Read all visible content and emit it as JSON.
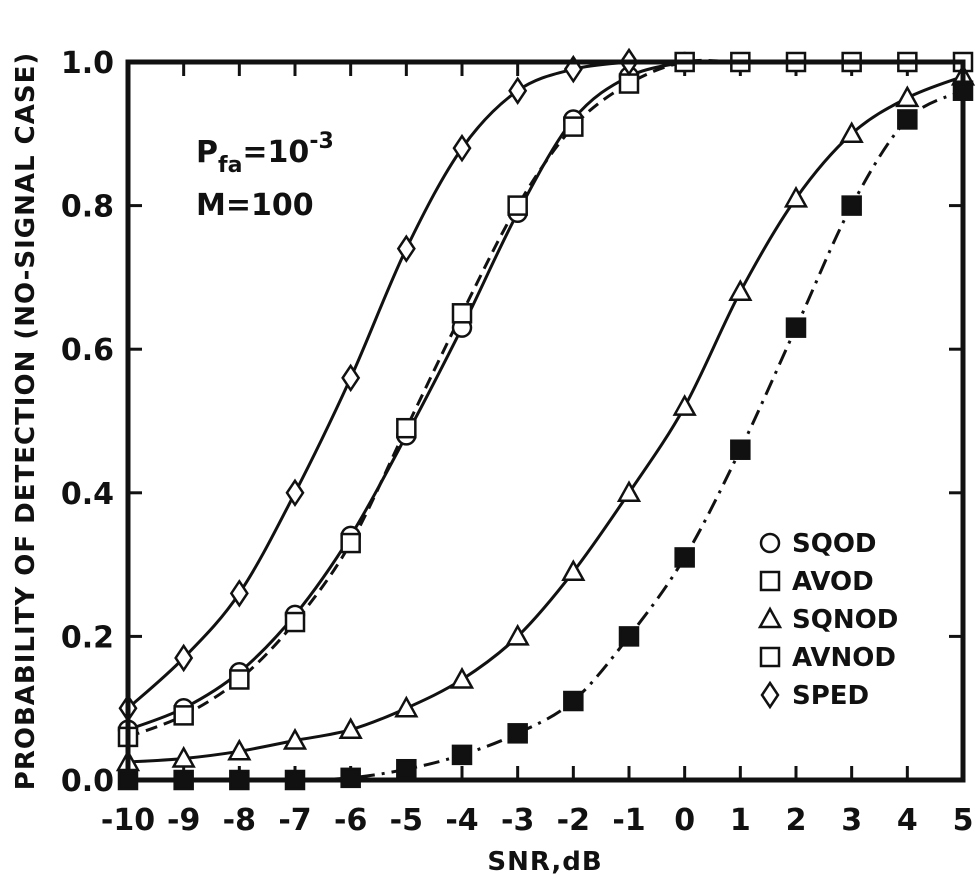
{
  "chart_data": {
    "type": "line",
    "title": "",
    "xlabel": "SNR,dB",
    "ylabel": "PROBABILITY OF DETECTION (NO-SIGNAL CASE)",
    "xlim": [
      -10,
      5
    ],
    "ylim": [
      0.0,
      1.0
    ],
    "x_ticks": [
      -10,
      -9,
      -8,
      -7,
      -6,
      -5,
      -4,
      -3,
      -2,
      -1,
      0,
      1,
      2,
      3,
      4,
      5
    ],
    "x_tick_labels": [
      "-10",
      "-9",
      "-8",
      "-7",
      "-6",
      "-5",
      "-4",
      "-3",
      "-2",
      "-1",
      "0",
      "1",
      "2",
      "3",
      "4",
      "5"
    ],
    "y_ticks": [
      0.0,
      0.2,
      0.4,
      0.6,
      0.8,
      1.0
    ],
    "y_tick_labels": [
      "0.0",
      "0.2",
      "0.4",
      "0.6",
      "0.8",
      "1.0"
    ],
    "annotation": {
      "line1_base": "P",
      "line1_sub": "fa",
      "line1_eq": "=10",
      "line1_sup": "-3",
      "line2": "M=100"
    },
    "legend_position": "bottom-right",
    "series": [
      {
        "name": "SQOD",
        "marker": "circle-open",
        "line": "solid",
        "x": [
          -10,
          -9,
          -8,
          -7,
          -6,
          -5,
          -4,
          -3,
          -2,
          -1,
          0
        ],
        "y": [
          0.07,
          0.1,
          0.15,
          0.23,
          0.34,
          0.48,
          0.63,
          0.79,
          0.92,
          0.98,
          1.0
        ]
      },
      {
        "name": "AVOD",
        "marker": "square-open",
        "line": "dashed",
        "x": [
          -10,
          -9,
          -8,
          -7,
          -6,
          -5,
          -4,
          -3,
          -2,
          -1,
          0,
          1,
          2,
          3,
          4,
          5
        ],
        "y": [
          0.06,
          0.09,
          0.14,
          0.22,
          0.33,
          0.49,
          0.65,
          0.8,
          0.91,
          0.97,
          1.0,
          1.0,
          1.0,
          1.0,
          1.0,
          1.0
        ]
      },
      {
        "name": "SQNOD",
        "marker": "triangle-open",
        "line": "solid",
        "x": [
          -10,
          -9,
          -8,
          -7,
          -6,
          -5,
          -4,
          -3,
          -2,
          -1,
          0,
          1,
          2,
          3,
          4,
          5
        ],
        "y": [
          0.025,
          0.03,
          0.04,
          0.055,
          0.07,
          0.1,
          0.14,
          0.2,
          0.29,
          0.4,
          0.52,
          0.68,
          0.81,
          0.9,
          0.95,
          0.98
        ]
      },
      {
        "name": "AVNOD",
        "marker": "square-filled",
        "line": "dashdot",
        "x": [
          -10,
          -9,
          -8,
          -7,
          -6,
          -5,
          -4,
          -3,
          -2,
          -1,
          0,
          1,
          2,
          3,
          4,
          5
        ],
        "y": [
          0.0,
          0.0,
          0.0,
          0.0,
          0.003,
          0.015,
          0.035,
          0.065,
          0.11,
          0.2,
          0.31,
          0.46,
          0.63,
          0.8,
          0.92,
          0.96
        ]
      },
      {
        "name": "SPED",
        "marker": "diamond-open",
        "line": "solid",
        "x": [
          -10,
          -9,
          -8,
          -7,
          -6,
          -5,
          -4,
          -3,
          -2,
          -1
        ],
        "y": [
          0.1,
          0.17,
          0.26,
          0.4,
          0.56,
          0.74,
          0.88,
          0.96,
          0.99,
          1.0
        ]
      }
    ]
  }
}
